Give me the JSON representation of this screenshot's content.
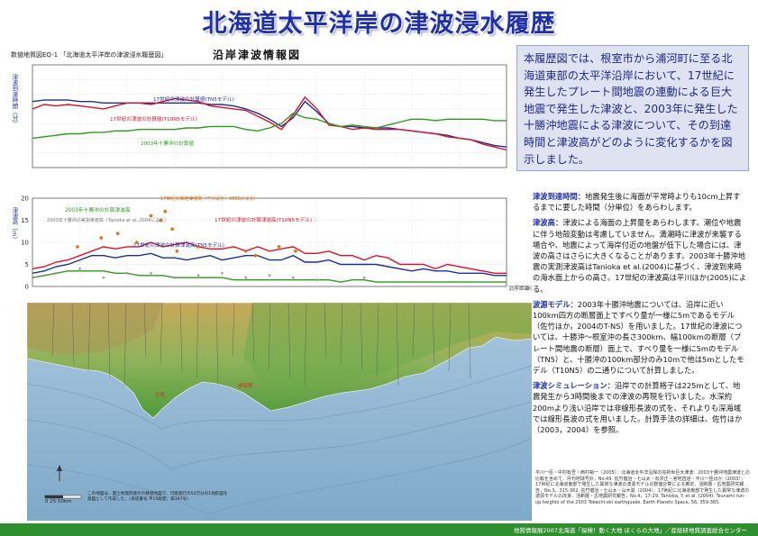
{
  "title": "北海道太平洋岸の津波浸水履歴",
  "map_code": "数値地質図EQ-1 「北海道太平洋岸の津波浸水履歴図」",
  "subtitle": "沿岸津波情報図",
  "intro": "本履歴図では、根室市から浦河町に至る北海道東部の太平洋沿岸において、17世紀に発生したプレート間地震の連動による巨大地震で発生した津波と、2003年に発生した十勝沖地震による津波について、その到達時間と津波高がどのように変化するかを図示しました。",
  "defs": [
    {
      "head": "津波到達時間：",
      "body": "地震発生後に海面が平常時よりも10cm上昇するまでに要した時間（分単位）をあらわします。"
    },
    {
      "head": "津波高：",
      "body": "津波による海面の上昇量をあらわします。潮位や地震に伴う地殻変動は考慮していません。満潮時に津波が来襲する場合や、地震によって海岸付近の地盤が低下した場合には、津波の高さはさらに大きくなることがあります。2003年十勝沖地震の実測津波高はTanioka et al.(2004)に基づく、津波到来時の海水面上からの高さ。17世紀の津波高は平川ほか(2005)による。"
    },
    {
      "head": "波源モデル：",
      "body": "2003年十勝沖地震については、沿岸に近い100km四方の断層面上ですべり量が一様に5mであるモデル（佐竹ほか，2004のT-NS）を用いました。17世紀の津波については、十勝沖～根室沖の長さ300km、幅100kmの断層（プレート間地震の断層）面上で、すべり量を一様に5mのモデル（TN5）と、十勝沖の100km部分のみ10mで他は5mとしたモデル（T10N5）の二通りについて計算しました。"
    },
    {
      "head": "津波シミュレーション：",
      "body": "沿岸での計算格子は225mとして、地震発生から3時間後までの津波の再現を行いました。水深約200mより浅い沿岸では非線形長波の式を、それよりも深海域では線形長波の式を用いました。計算手法の詳細は、佐竹ほか（2003，2004）を参照。"
    }
  ],
  "refs": "平川一臣・中村有吾・西村裕一（2005）：北海道太平洋沿岸の完新世巨大津波：2003十勝沖地震津波との比較を含めて．月刊地球号外，No.49. 佐竹健治・七山太・石井正・宮地直道・平川一臣ほか（2003）：17世紀に北海道東部で発生した異常な津波の波源モデルの数値計算による推定．活断層・古地震研究報告，No.3，315-362. 佐竹健治・七山太・山木滋（2004）：17世紀に北海道東部で発生した異常な津波の波源モデルの改良．活断層・古地震研究報告，No.4，17-29. Tanioka, Y. et al. (2004): Tsunami run-up heights of the 2003 Tokachi-oki earthquake. Earth Planets Space, 56, 359-365.",
  "footer": "地質情報展2007北海道「探検！動く大地 ぼくらの大地」／産総研地質調査総合センター",
  "map_notes": {
    "scale": "0  25  50km",
    "note": "この地図は、国土地理院発行の数値地図で、可能発行の50万分の1地形図を基図として作成した。（承認番号 平15総使，第397号）",
    "label_a": "広尾",
    "label_b": "襟裳岬"
  },
  "colors": {
    "t10n5": "#e0102a",
    "tn5": "#1a2f9a",
    "t2003": "#2e9a1e",
    "obs17": "#e07010",
    "obs2003": "#999999"
  },
  "chart_data": [
    {
      "type": "line",
      "title": "",
      "ylabel": "津波到達時間（分）",
      "xlabel": "",
      "ylim": [
        0,
        70
      ],
      "grid": true,
      "x": [
        0,
        10,
        20,
        30,
        40,
        50,
        60,
        70,
        80,
        90,
        100,
        110,
        120,
        130,
        140,
        150,
        160,
        170,
        180,
        190,
        200,
        210,
        220,
        230,
        240,
        250,
        260,
        270,
        280,
        290,
        300,
        310,
        320,
        330,
        340,
        350,
        360,
        370,
        380,
        390,
        400
      ],
      "series": [
        {
          "name": "17世紀の津波の計算値(TN5モデル)",
          "key": "tn5",
          "values": [
            45,
            46,
            46,
            46,
            45,
            45,
            44,
            44,
            44,
            44,
            44,
            44,
            44,
            44,
            44,
            43,
            43,
            42,
            40,
            37,
            33,
            28,
            34,
            45,
            38,
            30,
            28,
            28,
            27,
            27,
            27,
            26,
            25,
            24,
            23,
            22,
            20,
            19,
            17,
            15,
            14
          ]
        },
        {
          "name": "17世紀の津波の計算値(T10N5モデル)",
          "key": "t10n5",
          "values": [
            40,
            43,
            42,
            43,
            42,
            41,
            40,
            42,
            44,
            44,
            43,
            45,
            47,
            46,
            45,
            42,
            41,
            40,
            39,
            35,
            31,
            26,
            36,
            48,
            40,
            29,
            28,
            26,
            27,
            26,
            26,
            26,
            25,
            24,
            23,
            21,
            20,
            19,
            16,
            14,
            12
          ]
        },
        {
          "name": "2003年十勝沖の計算値",
          "key": "t2003",
          "values": [
            20,
            21,
            22,
            23,
            23,
            24,
            24,
            25,
            25,
            26,
            26,
            26,
            26,
            27,
            27,
            28,
            28,
            28,
            26,
            25,
            27,
            30,
            37,
            34,
            33,
            30,
            28,
            29,
            28,
            27,
            29,
            31,
            33,
            33,
            32,
            33,
            33,
            33,
            33,
            32,
            32
          ]
        }
      ]
    },
    {
      "type": "line",
      "title": "",
      "ylabel": "津波高（m）",
      "xlabel": "沿岸距離(km)",
      "ylim": [
        0,
        20
      ],
      "yticks": [
        0,
        5,
        10,
        15,
        20
      ],
      "grid": true,
      "x": [
        0,
        10,
        20,
        30,
        40,
        50,
        60,
        70,
        80,
        90,
        100,
        110,
        120,
        130,
        140,
        150,
        160,
        170,
        180,
        190,
        200,
        210,
        220,
        230,
        240,
        250,
        260,
        270,
        280,
        290,
        300,
        310,
        320,
        330,
        340,
        350,
        360,
        370,
        380,
        390,
        400
      ],
      "series": [
        {
          "name": "17世紀の津波の計算津波高(T10N5モデル)",
          "key": "t10n5",
          "values": [
            4,
            4.5,
            5.5,
            6,
            7,
            8,
            9,
            8.5,
            9,
            9,
            10,
            9,
            9.5,
            10,
            9,
            8.5,
            8.5,
            9,
            8,
            9,
            8,
            8.5,
            9,
            7.5,
            7.5,
            8,
            7,
            7,
            6,
            7,
            6.5,
            5,
            5,
            5,
            4,
            5,
            4.5,
            4,
            3.5,
            3,
            3
          ]
        },
        {
          "name": "17世紀の津波の計算津波高(TN5モデル)",
          "key": "tn5",
          "values": [
            3,
            3.5,
            4.5,
            5,
            6,
            7,
            7,
            6.5,
            7,
            7,
            7.5,
            6.5,
            6.5,
            6,
            6.5,
            7,
            6,
            6.5,
            7,
            7,
            6,
            6,
            7,
            5.5,
            5.5,
            6,
            5,
            5,
            5,
            5,
            4.5,
            4,
            3.5,
            4,
            3.5,
            3.5,
            3,
            3,
            3,
            2.5,
            2.5
          ]
        },
        {
          "name": "2003年十勝沖の計算津波高",
          "key": "t2003",
          "values": [
            2,
            2.5,
            3,
            3.5,
            3.5,
            3.5,
            3.5,
            3,
            3,
            2.5,
            2.5,
            2.5,
            2,
            2,
            2,
            2,
            2,
            1.5,
            1.5,
            1.5,
            1.5,
            1.5,
            1.5,
            1.5,
            1.5,
            1.5,
            1,
            1.5,
            1.5,
            1,
            1,
            1,
            1,
            1,
            1,
            1,
            1,
            1,
            1,
            1,
            1
          ]
        }
      ],
      "points": [
        {
          "name": "17世紀の推定津波高（平川ほか，2005による）",
          "key": "obs17",
          "xy": [
            [
              38,
              9
            ],
            [
              58,
              11
            ],
            [
              72,
              12
            ],
            [
              88,
              10
            ],
            [
              100,
              16
            ],
            [
              108,
              15
            ],
            [
              112,
              17
            ],
            [
              118,
              13
            ],
            [
              122,
              8
            ],
            [
              140,
              9
            ],
            [
              180,
              8
            ],
            [
              188,
              7
            ],
            [
              208,
              9
            ],
            [
              222,
              8
            ]
          ]
        },
        {
          "name": "2003年十勝沖の実測津波高（Tanioka et al.,2004による）",
          "key": "obs2003",
          "xy": [
            [
              20,
              3
            ],
            [
              40,
              4
            ],
            [
              60,
              2
            ],
            [
              80,
              3
            ],
            [
              100,
              3
            ],
            [
              120,
              2
            ],
            [
              140,
              2.5
            ],
            [
              160,
              3
            ],
            [
              180,
              2
            ],
            [
              200,
              2.5
            ],
            [
              220,
              2
            ],
            [
              240,
              1.5
            ],
            [
              260,
              1
            ],
            [
              280,
              2
            ]
          ]
        }
      ],
      "annotations": [
        {
          "text": "2003年十勝沖の計算津波高"
        },
        {
          "text": "2003年十勝沖の実測津波高（Tanioka et al.,2004による）"
        },
        {
          "text": "17世紀の推定津波高（平川ほか，2005による）"
        },
        {
          "text": "17世紀の津波の計算津波高(T10N5モデル)"
        },
        {
          "text": "17世紀の津波の計算津波高(TN5モデル)"
        }
      ]
    }
  ]
}
